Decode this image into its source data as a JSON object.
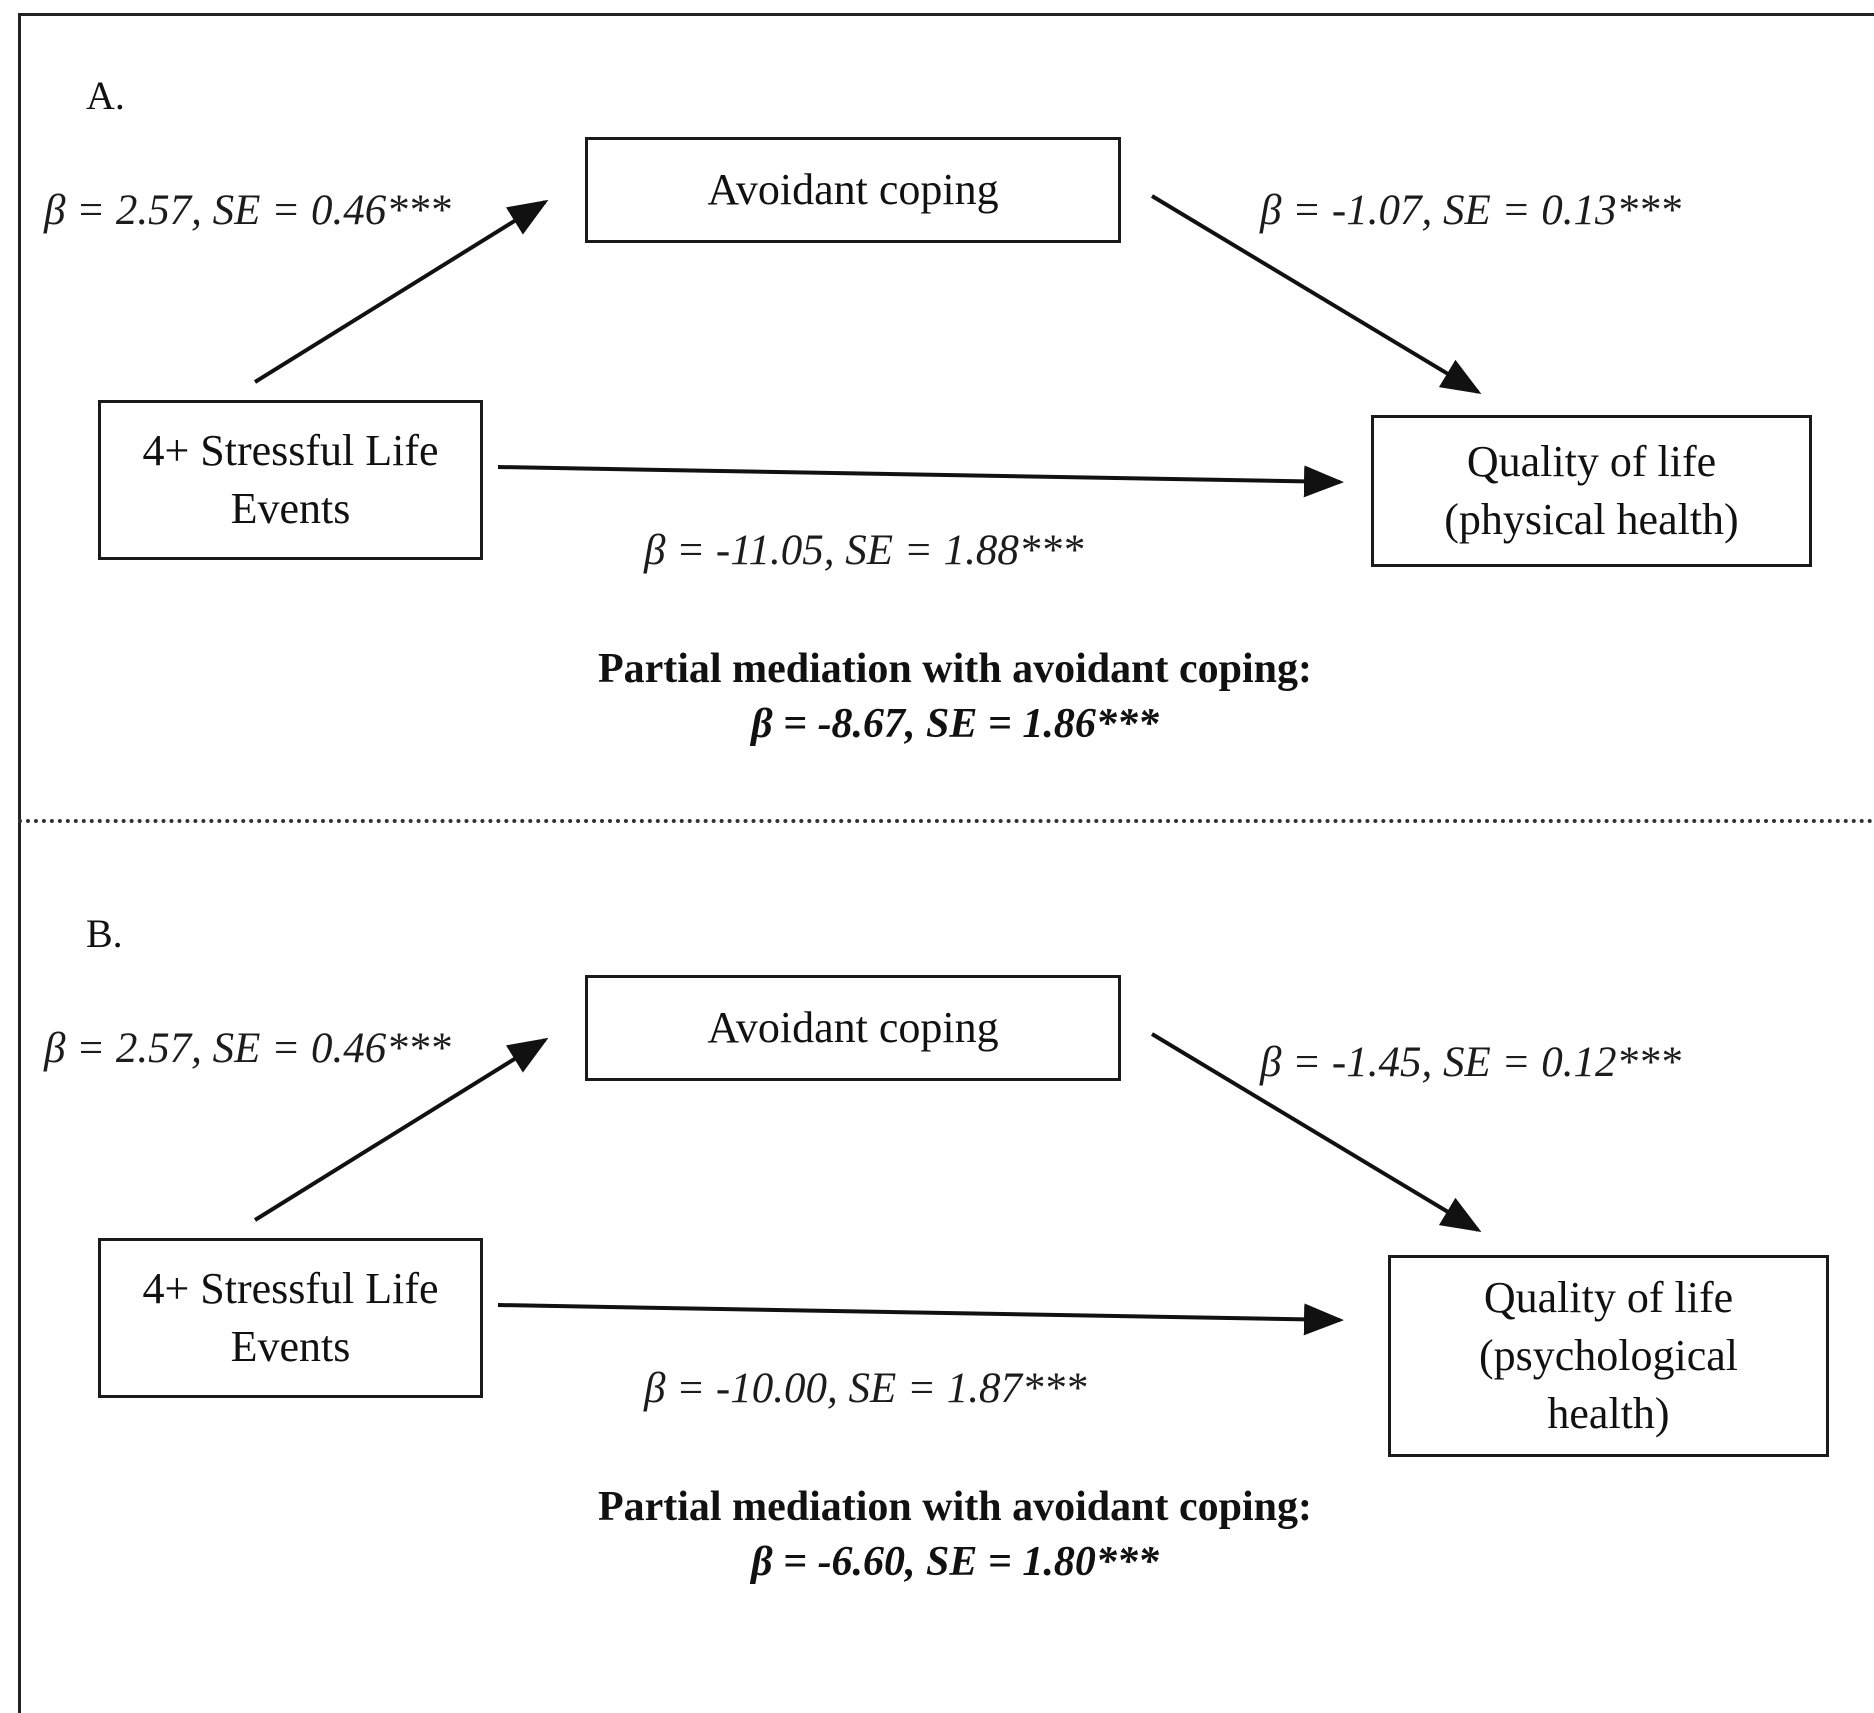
{
  "panels": [
    {
      "label": "A.",
      "mediator": "Avoidant coping",
      "predictor": "4+ Stressful Life Events",
      "outcome": "Quality of life (physical health)",
      "path_a": "β = 2.57, SE = 0.46***",
      "path_b": "β = -1.07, SE = 0.13***",
      "path_c": "β = -11.05, SE = 1.88***",
      "summary_heading": "Partial mediation with avoidant coping:",
      "summary_stat": "β = -8.67, SE = 1.86***"
    },
    {
      "label": "B.",
      "mediator": "Avoidant coping",
      "predictor": "4+ Stressful Life Events",
      "outcome": "Quality of life (psychological health)",
      "path_a": "β = 2.57, SE = 0.46***",
      "path_b": "β = -1.45, SE = 0.12***",
      "path_c": "β = -10.00, SE = 1.87***",
      "summary_heading": "Partial mediation with avoidant coping:",
      "summary_stat": "β = -6.60, SE = 1.80***"
    }
  ]
}
